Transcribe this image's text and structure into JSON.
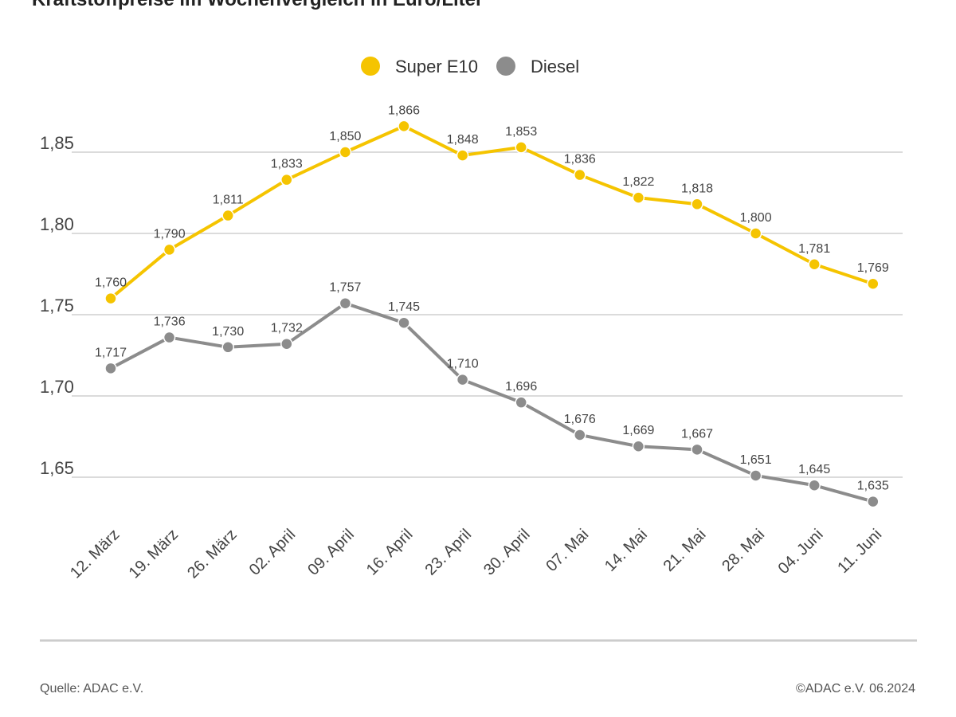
{
  "chart_data": {
    "type": "line",
    "title": "Kraftstoffpreise im Wochenvergleich in Euro/Liter",
    "categories": [
      "12. März",
      "19. März",
      "26. März",
      "02. April",
      "09. April",
      "16. April",
      "23. April",
      "30. April",
      "07. Mai",
      "14. Mai",
      "21. Mai",
      "28. Mai",
      "04. Juni",
      "11. Juni"
    ],
    "series": [
      {
        "name": "Super E10",
        "color": "#f5c400",
        "values": [
          1.76,
          1.79,
          1.811,
          1.833,
          1.85,
          1.866,
          1.848,
          1.853,
          1.836,
          1.822,
          1.818,
          1.8,
          1.781,
          1.769
        ],
        "labels": [
          "1,760",
          "1,790",
          "1,811",
          "1,833",
          "1,850",
          "1,866",
          "1,848",
          "1,853",
          "1,836",
          "1,822",
          "1,818",
          "1,800",
          "1,781",
          "1,769"
        ]
      },
      {
        "name": "Diesel",
        "color": "#8c8c8c",
        "values": [
          1.717,
          1.736,
          1.73,
          1.732,
          1.757,
          1.745,
          1.71,
          1.696,
          1.676,
          1.669,
          1.667,
          1.651,
          1.645,
          1.635
        ],
        "labels": [
          "1,717",
          "1,736",
          "1,730",
          "1,732",
          "1,757",
          "1,745",
          "1,710",
          "1,696",
          "1,676",
          "1,669",
          "1,667",
          "1,651",
          "1,645",
          "1,635"
        ]
      }
    ],
    "yticks": [
      1.65,
      1.7,
      1.75,
      1.8,
      1.85
    ],
    "ytick_labels": [
      "1,65",
      "1,70",
      "1,75",
      "1,80",
      "1,85"
    ],
    "ylim": [
      1.63,
      1.88
    ],
    "grid": true,
    "legend": "top-center"
  },
  "footer": {
    "source": "Quelle: ADAC e.V.",
    "copyright": "©ADAC e.V. 06.2024"
  }
}
